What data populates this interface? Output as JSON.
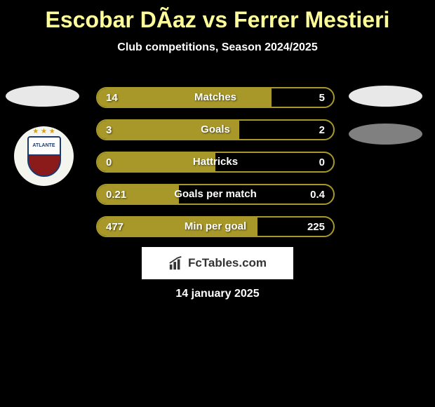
{
  "title": "Escobar DÃ­az vs Ferrer Mestieri",
  "subtitle": "Club competitions, Season 2024/2025",
  "club_badge": {
    "name": "ATLANTE",
    "stars": "★ ★ ★",
    "top_bg": "#ffffff",
    "bottom_bg": "#8b1a1a",
    "border_color": "#1a3a6e"
  },
  "stats": [
    {
      "label": "Matches",
      "left_value": "14",
      "right_value": "5",
      "left_pct": 73.7
    },
    {
      "label": "Goals",
      "left_value": "3",
      "right_value": "2",
      "left_pct": 60
    },
    {
      "label": "Hattricks",
      "left_value": "0",
      "right_value": "0",
      "left_pct": 50
    },
    {
      "label": "Goals per match",
      "left_value": "0.21",
      "right_value": "0.4",
      "left_pct": 34.4
    },
    {
      "label": "Min per goal",
      "left_value": "477",
      "right_value": "225",
      "left_pct": 67.9
    }
  ],
  "colors": {
    "background": "#000000",
    "title_color": "#ffff99",
    "bar_fill": "#a89829",
    "text_white": "#ffffff"
  },
  "branding": "FcTables.com",
  "date": "14 january 2025"
}
